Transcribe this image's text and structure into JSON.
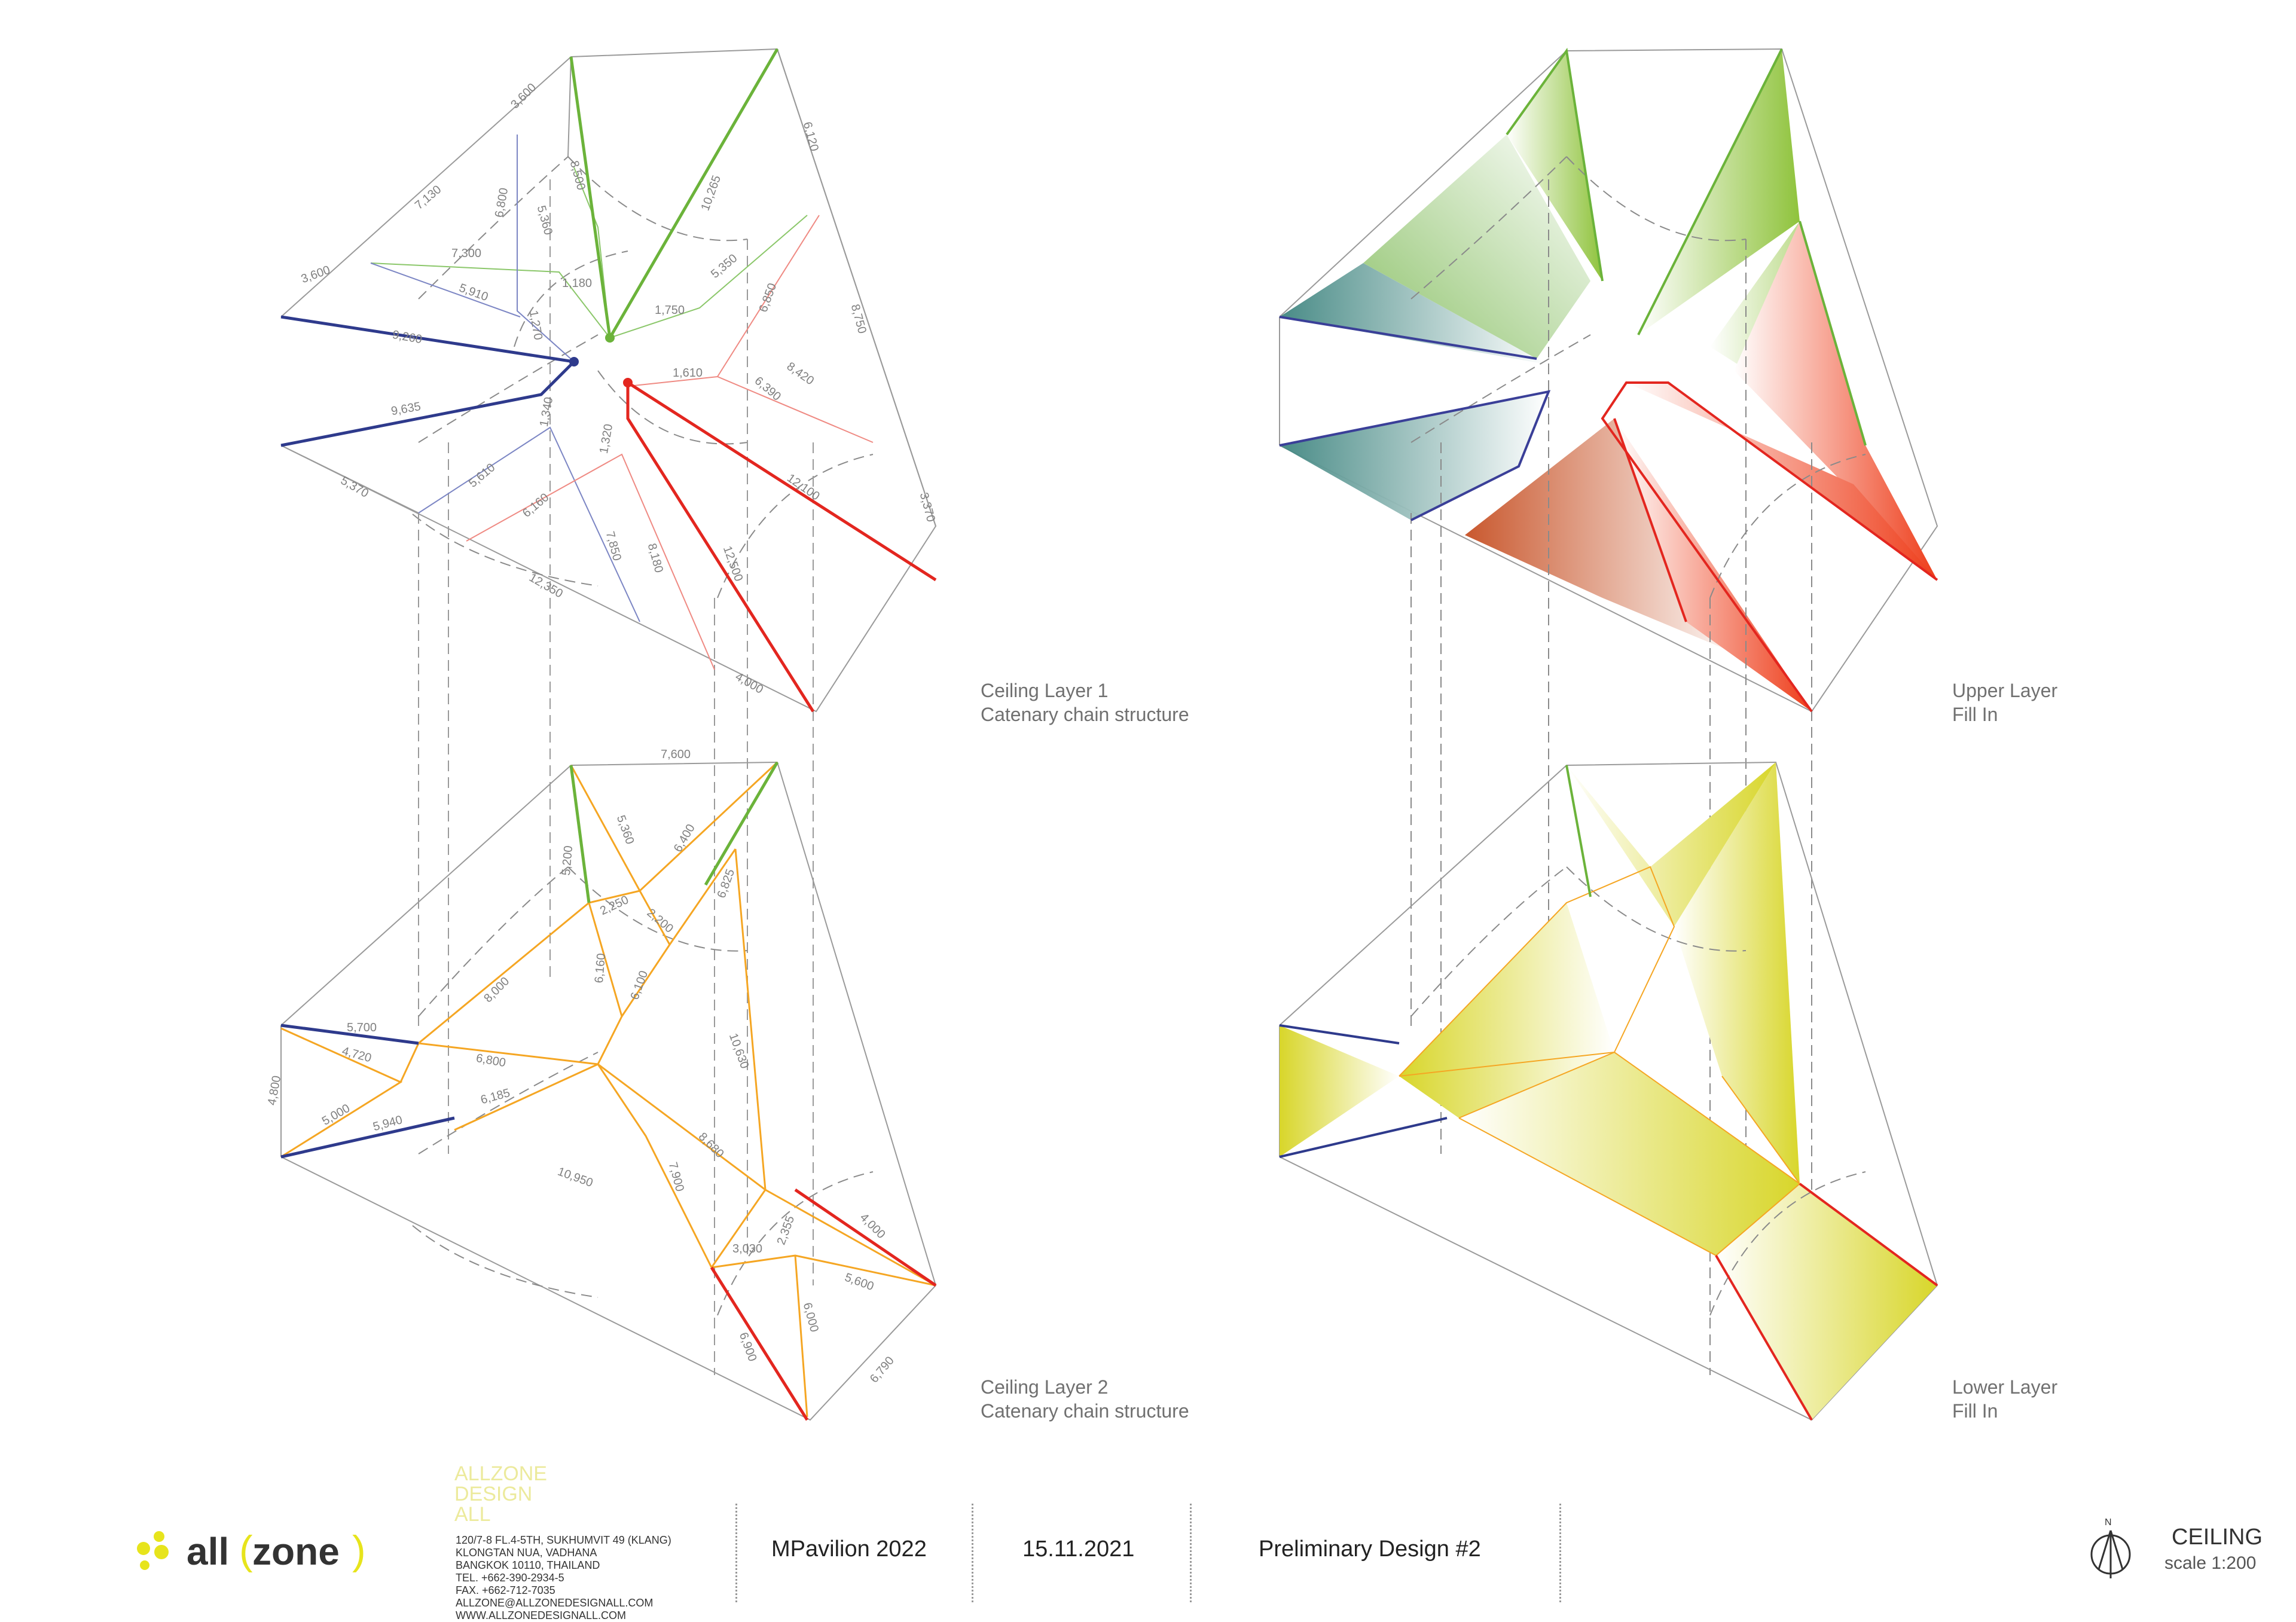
{
  "panels": {
    "layer1": {
      "caption_line1": "Ceiling Layer 1",
      "caption_line2": "Catenary chain structure",
      "dims": [
        "3,600",
        "6,120",
        "7,130",
        "3,600",
        "6,800",
        "8,500",
        "10,265",
        "7,300",
        "5,910",
        "5,360",
        "1,180",
        "5,350",
        "9,260",
        "1,270",
        "1,750",
        "6,850",
        "8,750",
        "1,610",
        "8,420",
        "6,390",
        "9,635",
        "1,340",
        "1,320",
        "12,100",
        "5,370",
        "5,610",
        "6,160",
        "7,850",
        "8,180",
        "12,500",
        "3,370",
        "12,350",
        "4,000"
      ]
    },
    "upper": {
      "caption_line1": "Upper Layer",
      "caption_line2": "Fill In"
    },
    "layer2": {
      "caption_line1": "Ceiling Layer 2",
      "caption_line2": "Catenary chain structure",
      "dims": [
        "7,600",
        "5,360",
        "6,400",
        "5,200",
        "6,825",
        "2,250",
        "2,200",
        "6,160",
        "8,000",
        "6,100",
        "5,700",
        "4,720",
        "6,800",
        "10,630",
        "4,800",
        "6,185",
        "5,000",
        "5,940",
        "8,680",
        "10,950",
        "7,900",
        "2,355",
        "3,030",
        "4,000",
        "5,600",
        "6,000",
        "6,900",
        "6,790"
      ]
    },
    "lower": {
      "caption_line1": "Lower Layer",
      "caption_line2": "Fill In"
    }
  },
  "title_block": {
    "logo_word1": "all",
    "logo_word2": "zone",
    "firm_watermark": [
      "ALLZONE",
      "DESIGN",
      "ALL"
    ],
    "address_lines": [
      "120/7-8 FL.4-5TH, SUKHUMVIT 49 (KLANG)",
      "KLONGTAN NUA, VADHANA",
      "BANGKOK 10110, THAILAND",
      "TEL. +662-390-2934-5",
      "FAX. +662-712-7035",
      "ALLZONE@ALLZONEDESIGNALL.COM",
      "WWW.ALLZONEDESIGNALL.COM"
    ],
    "project": "MPavilion 2022",
    "date": "15.11.2021",
    "stage": "Preliminary Design #2",
    "north_label": "N",
    "sheet_title": "CEILING",
    "scale": "scale 1:200"
  },
  "colors": {
    "blue": "#2e3a8c",
    "green": "#6bb33a",
    "red": "#e3261f",
    "orange": "#f5a623",
    "grey": "#9a9a9a",
    "yellow_fill": "#d8d62a",
    "teal_fill": "#4e8f8a",
    "logo_dots": "#e7e41c"
  }
}
